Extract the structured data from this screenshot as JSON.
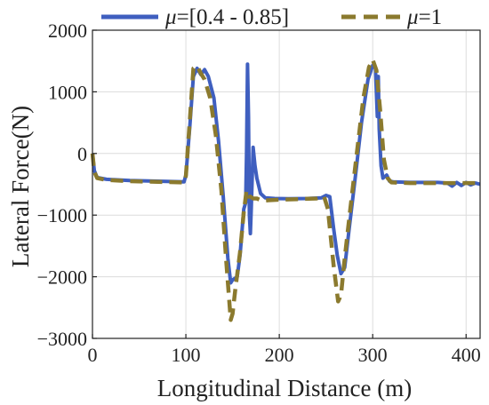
{
  "chart_data": {
    "type": "line",
    "xlabel": "Longitudinal Distance (m)",
    "ylabel": "Lateral Force(N)",
    "xlim": [
      0,
      415
    ],
    "ylim": [
      -3000,
      2000
    ],
    "x_ticks": [
      0,
      100,
      200,
      300,
      400
    ],
    "y_ticks": [
      2000,
      1000,
      0,
      -1000,
      -2000,
      -3000
    ],
    "grid": true,
    "legend_position": "top",
    "series": [
      {
        "name_prefix": "μ",
        "name_value": "=[0.4 - 0.85]",
        "color": "#3f5fbf",
        "style": "solid",
        "points": [
          [
            0,
            0
          ],
          [
            2,
            -280
          ],
          [
            5,
            -390
          ],
          [
            15,
            -420
          ],
          [
            40,
            -440
          ],
          [
            70,
            -450
          ],
          [
            98,
            -460
          ],
          [
            100,
            -350
          ],
          [
            104,
            400
          ],
          [
            108,
            1250
          ],
          [
            112,
            1380
          ],
          [
            116,
            1280
          ],
          [
            120,
            1360
          ],
          [
            124,
            1250
          ],
          [
            130,
            900
          ],
          [
            135,
            200
          ],
          [
            140,
            -700
          ],
          [
            145,
            -1700
          ],
          [
            148,
            -2100
          ],
          [
            150,
            -2050
          ],
          [
            155,
            -2000
          ],
          [
            158,
            -1650
          ],
          [
            162,
            -900
          ],
          [
            164,
            -800
          ],
          [
            165,
            0
          ],
          [
            166,
            1450
          ],
          [
            167,
            600
          ],
          [
            168,
            -1000
          ],
          [
            169,
            -1300
          ],
          [
            170,
            -900
          ],
          [
            172,
            100
          ],
          [
            174,
            -200
          ],
          [
            176,
            -400
          ],
          [
            180,
            -650
          ],
          [
            185,
            -720
          ],
          [
            195,
            -730
          ],
          [
            210,
            -735
          ],
          [
            230,
            -730
          ],
          [
            245,
            -720
          ],
          [
            250,
            -680
          ],
          [
            254,
            -700
          ],
          [
            258,
            -1200
          ],
          [
            262,
            -1650
          ],
          [
            266,
            -1950
          ],
          [
            270,
            -1850
          ],
          [
            275,
            -1200
          ],
          [
            282,
            -300
          ],
          [
            288,
            500
          ],
          [
            295,
            1200
          ],
          [
            300,
            1430
          ],
          [
            303,
            1380
          ],
          [
            305,
            600
          ],
          [
            306,
            1250
          ],
          [
            307,
            400
          ],
          [
            309,
            -200
          ],
          [
            311,
            -400
          ],
          [
            315,
            -350
          ],
          [
            318,
            -450
          ],
          [
            322,
            -460
          ],
          [
            340,
            -470
          ],
          [
            370,
            -470
          ],
          [
            380,
            -480
          ],
          [
            385,
            -530
          ],
          [
            390,
            -470
          ],
          [
            395,
            -520
          ],
          [
            400,
            -470
          ],
          [
            405,
            -510
          ],
          [
            410,
            -480
          ],
          [
            415,
            -500
          ]
        ]
      },
      {
        "name_prefix": "μ",
        "name_value": "=1",
        "color": "#8b7a2e",
        "style": "dashed",
        "points": [
          [
            0,
            0
          ],
          [
            2,
            -300
          ],
          [
            5,
            -400
          ],
          [
            15,
            -430
          ],
          [
            40,
            -450
          ],
          [
            70,
            -460
          ],
          [
            98,
            -470
          ],
          [
            100,
            -360
          ],
          [
            104,
            500
          ],
          [
            108,
            1380
          ],
          [
            112,
            1420
          ],
          [
            116,
            1300
          ],
          [
            120,
            1200
          ],
          [
            126,
            900
          ],
          [
            132,
            300
          ],
          [
            138,
            -600
          ],
          [
            143,
            -1700
          ],
          [
            148,
            -2700
          ],
          [
            150,
            -2600
          ],
          [
            153,
            -2200
          ],
          [
            158,
            -1600
          ],
          [
            162,
            -950
          ],
          [
            165,
            -600
          ],
          [
            167,
            -700
          ],
          [
            169,
            -700
          ],
          [
            172,
            -730
          ],
          [
            176,
            -730
          ],
          [
            182,
            -770
          ],
          [
            188,
            -760
          ],
          [
            200,
            -750
          ],
          [
            220,
            -740
          ],
          [
            240,
            -730
          ],
          [
            248,
            -700
          ],
          [
            252,
            -900
          ],
          [
            258,
            -1800
          ],
          [
            263,
            -2400
          ],
          [
            266,
            -2300
          ],
          [
            270,
            -1700
          ],
          [
            276,
            -900
          ],
          [
            283,
            0
          ],
          [
            290,
            900
          ],
          [
            296,
            1400
          ],
          [
            300,
            1520
          ],
          [
            304,
            1350
          ],
          [
            308,
            700
          ],
          [
            312,
            -100
          ],
          [
            316,
            -400
          ],
          [
            320,
            -470
          ],
          [
            340,
            -480
          ],
          [
            370,
            -480
          ],
          [
            415,
            -480
          ]
        ]
      }
    ]
  }
}
